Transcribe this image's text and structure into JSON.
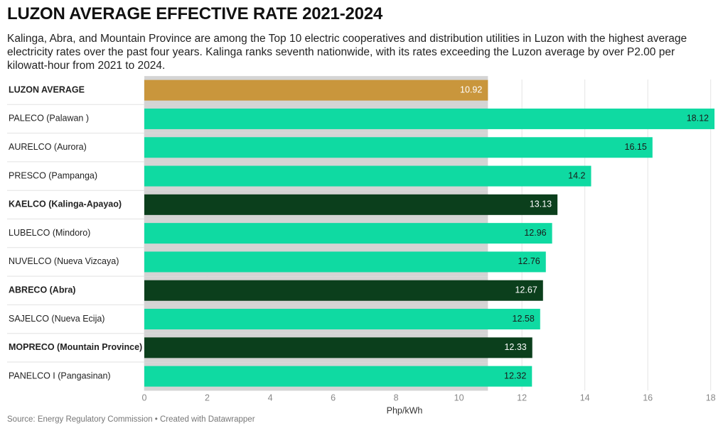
{
  "chart_data": {
    "type": "bar",
    "orientation": "horizontal",
    "title": "LUZON AVERAGE EFFECTIVE RATE 2021-2024",
    "subtitle": "Kalinga, Abra, and Mountain Province are among the Top 10 electric cooperatives and distribution utilities in Luzon with the highest average electricity rates over the past four years. Kalinga ranks seventh nationwide, with its rates exceeding the Luzon average by over P2.00 per kilowatt-hour from 2021 to 2024.",
    "categories": [
      "LUZON AVERAGE",
      "PALECO (Palawan )",
      "AURELCO (Aurora)",
      "PRESCO (Pampanga)",
      "KAELCO (Kalinga-Apayao)",
      "LUBELCO (Mindoro)",
      "NUVELCO (Nueva Vizcaya)",
      "ABRECO (Abra)",
      "SAJELCO (Nueva Ecija)",
      "MOPRECO (Mountain Province)",
      "PANELCO I (Pangasinan)"
    ],
    "values": [
      10.92,
      18.12,
      16.15,
      14.2,
      13.13,
      12.96,
      12.76,
      12.67,
      12.58,
      12.33,
      12.32
    ],
    "color": "#0fdaa2",
    "colors": [
      "#c9963c",
      "#0fdaa2",
      "#0fdaa2",
      "#0fdaa2",
      "#0b3f1c",
      "#0fdaa2",
      "#0fdaa2",
      "#0b3f1c",
      "#0fdaa2",
      "#0b3f1c",
      "#0fdaa2"
    ],
    "xlabel": "Php/kWh",
    "xlim": [
      0,
      18.12
    ],
    "xticks": [
      0,
      2,
      4,
      6,
      8,
      10,
      12,
      14,
      16,
      18
    ],
    "grid": true,
    "source": "Source: Energy Regulatory Commission • Created with Datawrapper"
  }
}
